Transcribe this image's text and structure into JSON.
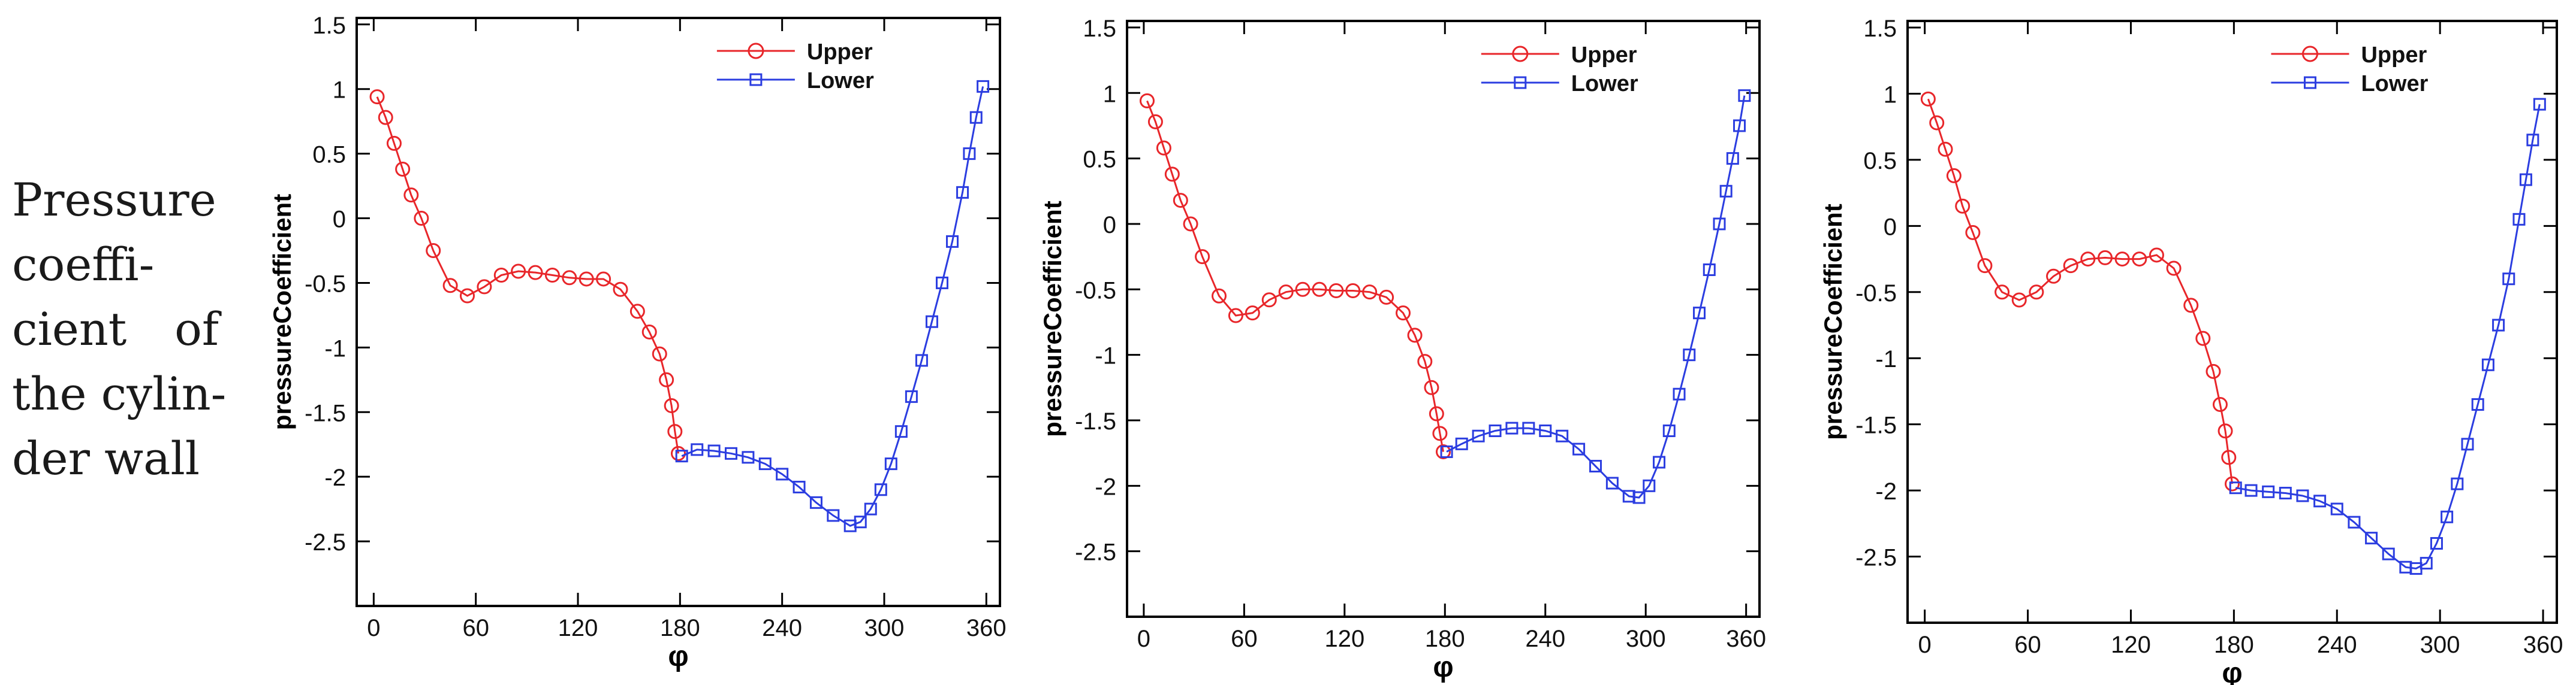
{
  "caption": {
    "lines": [
      "Pressure",
      "coeffi-",
      "cient",
      "of",
      "the cylin-",
      "der wall"
    ]
  },
  "colors": {
    "upper": "#e8262a",
    "lower": "#2b3de0"
  },
  "chart_data": [
    {
      "type": "line",
      "xlabel": "φ",
      "ylabel": "pressureCoefficient",
      "xlim": [
        -10,
        368
      ],
      "ylim": [
        -3.0,
        1.55
      ],
      "xticks": [
        0,
        60,
        120,
        180,
        240,
        300,
        360
      ],
      "yticks": [
        1.5,
        1,
        0.5,
        0,
        -0.5,
        -1,
        -1.5,
        -2,
        -2.5
      ],
      "yticklabels": [
        "1.5",
        "1",
        "0.5",
        "0",
        "-0.5",
        "-1",
        "-1.5",
        "-2",
        "-2.5"
      ],
      "legend_position": "top-right",
      "series": [
        {
          "name": "Upper",
          "marker": "circle",
          "x": [
            2,
            7,
            12,
            17,
            22,
            28,
            35,
            45,
            55,
            65,
            75,
            85,
            95,
            105,
            115,
            125,
            135,
            145,
            155,
            162,
            168,
            172,
            175,
            177,
            179
          ],
          "y": [
            0.94,
            0.78,
            0.58,
            0.38,
            0.18,
            0.0,
            -0.25,
            -0.52,
            -0.6,
            -0.53,
            -0.44,
            -0.41,
            -0.42,
            -0.44,
            -0.46,
            -0.47,
            -0.47,
            -0.55,
            -0.72,
            -0.88,
            -1.05,
            -1.25,
            -1.45,
            -1.65,
            -1.82
          ]
        },
        {
          "name": "Lower",
          "marker": "square",
          "x": [
            181,
            190,
            200,
            210,
            220,
            230,
            240,
            250,
            260,
            270,
            280,
            286,
            292,
            298,
            304,
            310,
            316,
            322,
            328,
            334,
            340,
            346,
            350,
            354,
            358
          ],
          "y": [
            -1.84,
            -1.79,
            -1.8,
            -1.82,
            -1.85,
            -1.9,
            -1.98,
            -2.08,
            -2.2,
            -2.3,
            -2.38,
            -2.35,
            -2.25,
            -2.1,
            -1.9,
            -1.65,
            -1.38,
            -1.1,
            -0.8,
            -0.5,
            -0.18,
            0.2,
            0.5,
            0.78,
            1.02
          ]
        }
      ]
    },
    {
      "type": "line",
      "xlabel": "φ",
      "ylabel": "pressureCoefficient",
      "xlim": [
        -10,
        368
      ],
      "ylim": [
        -3.0,
        1.55
      ],
      "xticks": [
        0,
        60,
        120,
        180,
        240,
        300,
        360
      ],
      "yticks": [
        1.5,
        1,
        0.5,
        0,
        -0.5,
        -1,
        -1.5,
        -2,
        -2.5
      ],
      "yticklabels": [
        "1.5",
        "1",
        "0.5",
        "0",
        "-0.5",
        "-1",
        "-1.5",
        "-2",
        "-2.5"
      ],
      "legend_position": "top-right",
      "series": [
        {
          "name": "Upper",
          "marker": "circle",
          "x": [
            2,
            7,
            12,
            17,
            22,
            28,
            35,
            45,
            55,
            65,
            75,
            85,
            95,
            105,
            115,
            125,
            135,
            145,
            155,
            162,
            168,
            172,
            175,
            177,
            179
          ],
          "y": [
            0.94,
            0.78,
            0.58,
            0.38,
            0.18,
            0.0,
            -0.25,
            -0.55,
            -0.7,
            -0.68,
            -0.58,
            -0.52,
            -0.5,
            -0.5,
            -0.51,
            -0.51,
            -0.52,
            -0.56,
            -0.68,
            -0.85,
            -1.05,
            -1.25,
            -1.45,
            -1.6,
            -1.74
          ]
        },
        {
          "name": "Lower",
          "marker": "square",
          "x": [
            181,
            190,
            200,
            210,
            220,
            230,
            240,
            250,
            260,
            270,
            280,
            290,
            296,
            302,
            308,
            314,
            320,
            326,
            332,
            338,
            344,
            348,
            352,
            356,
            359
          ],
          "y": [
            -1.74,
            -1.68,
            -1.62,
            -1.58,
            -1.56,
            -1.56,
            -1.58,
            -1.62,
            -1.72,
            -1.85,
            -1.98,
            -2.08,
            -2.09,
            -2.0,
            -1.82,
            -1.58,
            -1.3,
            -1.0,
            -0.68,
            -0.35,
            0.0,
            0.25,
            0.5,
            0.75,
            0.98
          ]
        }
      ]
    },
    {
      "type": "line",
      "xlabel": "φ",
      "ylabel": "pressureCoefficient",
      "xlim": [
        -10,
        368
      ],
      "ylim": [
        -3.0,
        1.55
      ],
      "xticks": [
        0,
        60,
        120,
        180,
        240,
        300,
        360
      ],
      "yticks": [
        1.5,
        1,
        0.5,
        0,
        -0.5,
        -1,
        -1.5,
        -2,
        -2.5
      ],
      "yticklabels": [
        "1.5",
        "1",
        "0.5",
        "0",
        "-0.5",
        "-1",
        "-1.5",
        "-2",
        "-2.5"
      ],
      "legend_position": "top-right",
      "series": [
        {
          "name": "Upper",
          "marker": "circle",
          "x": [
            2,
            7,
            12,
            17,
            22,
            28,
            35,
            45,
            55,
            65,
            75,
            85,
            95,
            105,
            115,
            125,
            135,
            145,
            155,
            162,
            168,
            172,
            175,
            177,
            179
          ],
          "y": [
            0.96,
            0.78,
            0.58,
            0.38,
            0.15,
            -0.05,
            -0.3,
            -0.5,
            -0.56,
            -0.5,
            -0.38,
            -0.3,
            -0.25,
            -0.24,
            -0.25,
            -0.25,
            -0.22,
            -0.32,
            -0.6,
            -0.85,
            -1.1,
            -1.35,
            -1.55,
            -1.75,
            -1.95
          ]
        },
        {
          "name": "Lower",
          "marker": "square",
          "x": [
            181,
            190,
            200,
            210,
            220,
            230,
            240,
            250,
            260,
            270,
            280,
            286,
            292,
            298,
            304,
            310,
            316,
            322,
            328,
            334,
            340,
            346,
            350,
            354,
            358
          ],
          "y": [
            -1.98,
            -2.0,
            -2.01,
            -2.02,
            -2.04,
            -2.08,
            -2.14,
            -2.24,
            -2.36,
            -2.48,
            -2.58,
            -2.59,
            -2.55,
            -2.4,
            -2.2,
            -1.95,
            -1.65,
            -1.35,
            -1.05,
            -0.75,
            -0.4,
            0.05,
            0.35,
            0.65,
            0.92
          ]
        }
      ]
    }
  ]
}
